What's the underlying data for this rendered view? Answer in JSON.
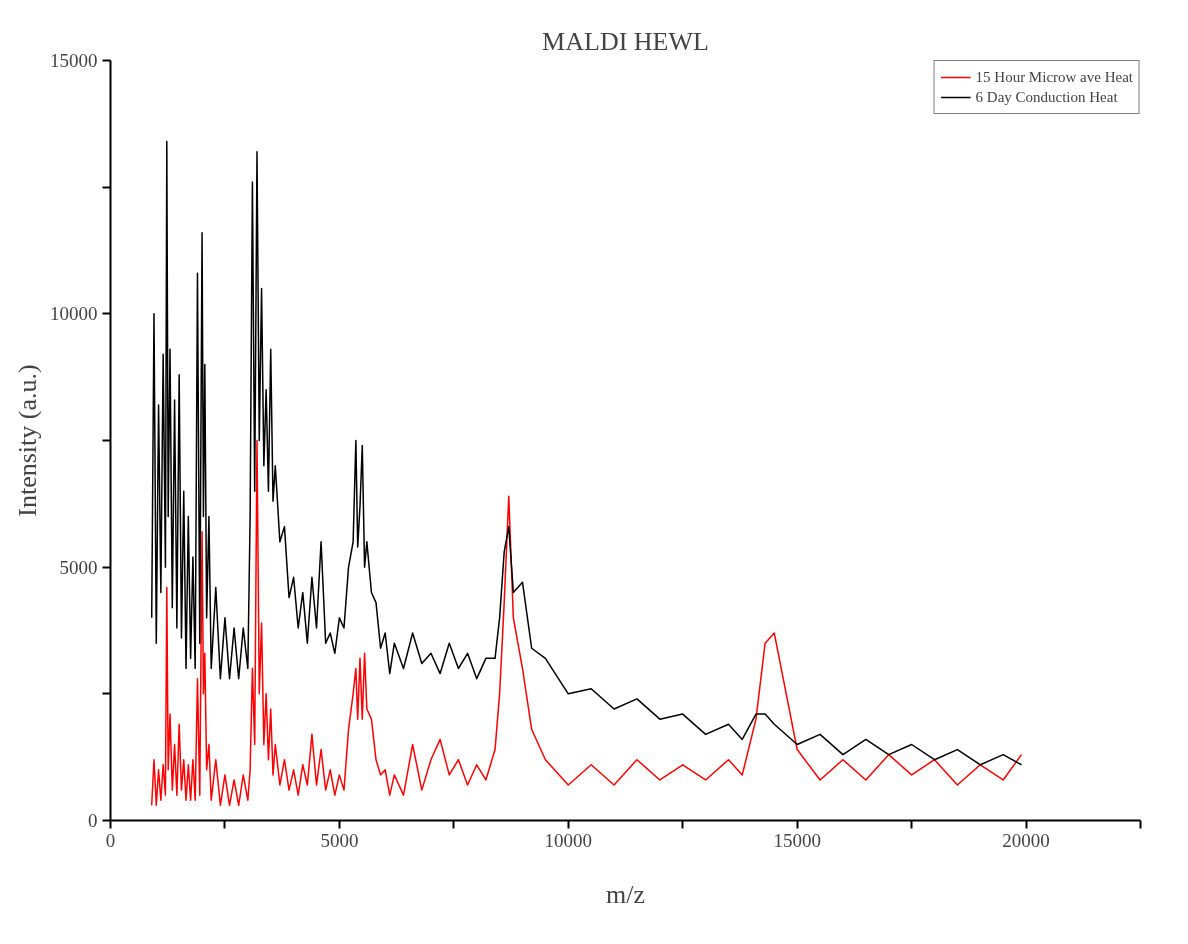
{
  "chart_data": {
    "type": "line",
    "title": "MALDI HEWL",
    "xlabel": "m/z",
    "ylabel": "Intensity (a.u.)",
    "xlim": [
      0,
      22500
    ],
    "ylim": [
      0,
      15000
    ],
    "xticks": [
      0,
      {
        "value": 2500,
        "label": null
      },
      5000,
      {
        "value": 7500,
        "label": null
      },
      10000,
      {
        "value": 12500,
        "label": null
      },
      15000,
      {
        "value": 17500,
        "label": null
      },
      20000,
      {
        "value": 22500,
        "label": null
      }
    ],
    "yticks": [
      0,
      {
        "value": 2500,
        "label": null
      },
      5000,
      {
        "value": 7500,
        "label": null
      },
      10000,
      {
        "value": 12500,
        "label": null
      },
      15000
    ],
    "grid": false,
    "legend": "top right",
    "marker": "none",
    "line_style": "solid",
    "x": [
      900,
      950,
      1000,
      1050,
      1100,
      1150,
      1200,
      1230,
      1260,
      1300,
      1350,
      1400,
      1450,
      1500,
      1550,
      1600,
      1650,
      1700,
      1750,
      1800,
      1850,
      1900,
      1950,
      2000,
      2030,
      2060,
      2100,
      2150,
      2200,
      2300,
      2400,
      2500,
      2600,
      2700,
      2800,
      2900,
      3000,
      3050,
      3100,
      3150,
      3200,
      3250,
      3300,
      3350,
      3400,
      3450,
      3500,
      3550,
      3600,
      3700,
      3800,
      3900,
      4000,
      4100,
      4200,
      4300,
      4400,
      4500,
      4600,
      4700,
      4800,
      4900,
      5000,
      5100,
      5200,
      5300,
      5360,
      5400,
      5450,
      5500,
      5550,
      5600,
      5700,
      5800,
      5900,
      6000,
      6100,
      6200,
      6400,
      6600,
      6800,
      7000,
      7200,
      7400,
      7600,
      7800,
      8000,
      8200,
      8400,
      8500,
      8600,
      8700,
      8800,
      9000,
      9200,
      9500,
      10000,
      10500,
      11000,
      11500,
      12000,
      12500,
      13000,
      13500,
      13800,
      14100,
      14300,
      14500,
      15000,
      15500,
      16000,
      16500,
      17000,
      17500,
      18000,
      18500,
      19000,
      19500,
      19900
    ],
    "series": [
      {
        "name": "15 Hour Microw ave Heat",
        "color": "#ff0000",
        "values": [
          300,
          1200,
          300,
          1000,
          400,
          1100,
          500,
          4600,
          1000,
          2100,
          600,
          1500,
          500,
          1900,
          600,
          1200,
          400,
          1100,
          400,
          1200,
          400,
          2800,
          500,
          5700,
          2500,
          3300,
          1000,
          1500,
          400,
          1200,
          300,
          900,
          300,
          800,
          300,
          900,
          400,
          1000,
          3000,
          1500,
          7500,
          2500,
          3900,
          1500,
          2500,
          1200,
          2200,
          900,
          1500,
          700,
          1200,
          600,
          1000,
          500,
          1100,
          700,
          1700,
          700,
          1400,
          600,
          1000,
          500,
          900,
          600,
          1800,
          2500,
          3000,
          2000,
          3200,
          2000,
          3300,
          2200,
          2000,
          1200,
          900,
          1000,
          500,
          900,
          500,
          1500,
          600,
          1200,
          1600,
          900,
          1200,
          700,
          1100,
          800,
          1400,
          2500,
          4300,
          6400,
          4000,
          3000,
          1800,
          1200,
          700,
          1100,
          700,
          1200,
          800,
          1100,
          800,
          1200,
          900,
          2000,
          3500,
          3700,
          1400,
          800,
          1200,
          800,
          1300,
          900,
          1200,
          700,
          1100,
          800,
          1300
        ]
      },
      {
        "name": "6 Day Conduction Heat",
        "color": "#000000",
        "values": [
          4000,
          10000,
          3500,
          8200,
          4500,
          9200,
          5000,
          13400,
          6000,
          9300,
          4200,
          8300,
          3800,
          8800,
          3600,
          6500,
          3000,
          6000,
          3200,
          5200,
          3000,
          10800,
          3500,
          11600,
          6000,
          9000,
          4000,
          6000,
          3000,
          4600,
          2800,
          4000,
          2800,
          3800,
          2800,
          3800,
          3000,
          6000,
          12600,
          6500,
          13200,
          7500,
          10500,
          7000,
          8500,
          6500,
          9300,
          6300,
          7000,
          5500,
          5800,
          4400,
          4800,
          3800,
          4500,
          3500,
          4800,
          3800,
          5500,
          3500,
          3700,
          3300,
          4000,
          3800,
          5000,
          5500,
          7500,
          5400,
          6200,
          7400,
          5000,
          5500,
          4500,
          4300,
          3400,
          3700,
          2900,
          3500,
          3000,
          3700,
          3100,
          3300,
          2900,
          3500,
          3000,
          3300,
          2800,
          3200,
          3200,
          4000,
          5300,
          5800,
          4500,
          4700,
          3400,
          3200,
          2500,
          2600,
          2200,
          2400,
          2000,
          2100,
          1700,
          1900,
          1600,
          2100,
          2100,
          1900,
          1500,
          1700,
          1300,
          1600,
          1300,
          1500,
          1200,
          1400,
          1100,
          1300,
          1100
        ]
      }
    ]
  }
}
